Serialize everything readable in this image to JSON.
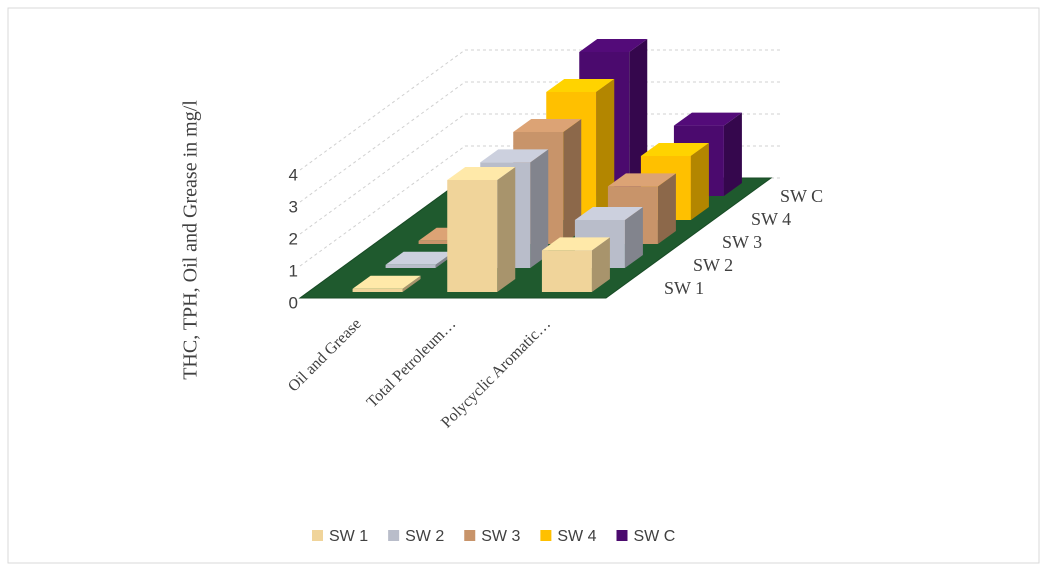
{
  "chart_data": {
    "type": "bar3d",
    "y_label": "THC, TPH, Oil and Grease in mg/l",
    "categories": [
      "Oil and Grease",
      "Total Petroleum…",
      "Polycyclic Aromatic…"
    ],
    "series": [
      {
        "name": "SW 1",
        "color": "#f0d49a",
        "values": [
          0.1,
          3.5,
          1.3
        ]
      },
      {
        "name": "SW 2",
        "color": "#b9bdca",
        "values": [
          0.1,
          3.3,
          1.5
        ]
      },
      {
        "name": "SW 3",
        "color": "#c8946a",
        "values": [
          0.1,
          3.5,
          1.8
        ]
      },
      {
        "name": "SW 4",
        "color": "#ffc000",
        "values": [
          0,
          4.0,
          2.0
        ]
      },
      {
        "name": "SW C",
        "color": "#4b0a6e",
        "values": [
          0,
          4.5,
          2.2
        ]
      }
    ],
    "ylim": [
      0,
      5
    ],
    "yticks": [
      0,
      1,
      2,
      3,
      4
    ],
    "grid": true,
    "legend": "bottom"
  }
}
